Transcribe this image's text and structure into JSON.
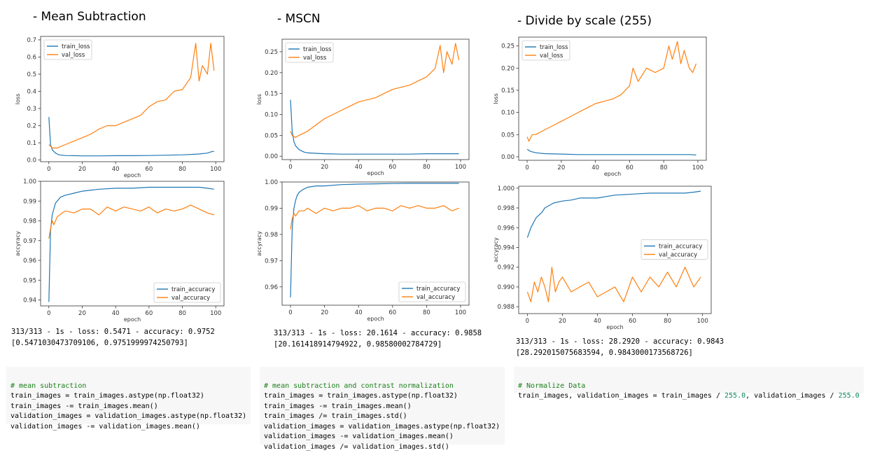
{
  "titles": [
    "- Mean Subtraction",
    "- MSCN",
    "- Divide by scale (255)"
  ],
  "colors": {
    "train": "#1f77b4",
    "val": "#ff7f0e"
  },
  "outputs": [
    {
      "line1": "313/313 - 1s - loss: 0.5471 - accuracy: 0.9752",
      "line2": "[0.5471030473709106, 0.9751999974250793]"
    },
    {
      "line1": "313/313 - 1s - loss: 20.1614 - accuracy: 0.9858",
      "line2": "[20.161418914794922, 0.98580002784729]"
    },
    {
      "line1": "313/313 - 1s - loss: 28.2920 - accuracy: 0.9843",
      "line2": "[28.292015075683594, 0.9843000173568726]"
    }
  ],
  "code": [
    {
      "comment": "# mean subtraction",
      "lines": [
        "train_images = train_images.astype(np.float32)",
        "train_images -= train_images.mean()",
        "validation_images = validation_images.astype(np.float32)",
        "validation_images -= validation_images.mean()"
      ]
    },
    {
      "comment": "# mean subtraction and contrast normalization",
      "lines": [
        "train_images = train_images.astype(np.float32)",
        "train_images -= train_images.mean()",
        "train_images /= train_images.std()",
        "validation_images = validation_images.astype(np.float32)",
        "validation_images -= validation_images.mean()",
        "validation_images /= validation_images.std()"
      ]
    },
    {
      "comment": "# Normalize Data",
      "line_prefix": "train_images, validation_images = train_images / ",
      "num1": "255.0",
      "line_mid": ", validation_images / ",
      "num2": "255.0"
    }
  ],
  "chart_data": [
    {
      "type": "line",
      "title": "",
      "xlabel": "epoch",
      "ylabel": "loss",
      "xlim": [
        0,
        100
      ],
      "ylim": [
        -0.01,
        0.72
      ],
      "xticks": [
        0,
        20,
        40,
        60,
        80,
        100
      ],
      "yticks": [
        0.0,
        0.1,
        0.2,
        0.3,
        0.4,
        0.5,
        0.6,
        0.7
      ],
      "ytick_labels": [
        "0.0",
        "0.1",
        "0.2",
        "0.3",
        "0.4",
        "0.5",
        "0.6",
        "0.7"
      ],
      "legend": "top-left",
      "series": [
        {
          "name": "train_loss",
          "x": [
            0,
            1,
            2,
            3,
            4,
            5,
            6,
            8,
            10,
            15,
            20,
            30,
            40,
            50,
            60,
            70,
            80,
            90,
            95,
            98,
            99
          ],
          "y": [
            0.25,
            0.09,
            0.06,
            0.05,
            0.04,
            0.035,
            0.03,
            0.028,
            0.026,
            0.025,
            0.024,
            0.024,
            0.025,
            0.025,
            0.026,
            0.028,
            0.03,
            0.035,
            0.04,
            0.05,
            0.05
          ]
        },
        {
          "name": "val_loss",
          "x": [
            0,
            2,
            5,
            10,
            15,
            20,
            25,
            30,
            35,
            40,
            45,
            50,
            55,
            60,
            65,
            70,
            75,
            80,
            85,
            88,
            90,
            92,
            95,
            97,
            99
          ],
          "y": [
            0.09,
            0.07,
            0.07,
            0.09,
            0.11,
            0.13,
            0.15,
            0.18,
            0.2,
            0.2,
            0.22,
            0.24,
            0.26,
            0.31,
            0.34,
            0.35,
            0.4,
            0.41,
            0.48,
            0.68,
            0.46,
            0.55,
            0.5,
            0.68,
            0.52
          ]
        }
      ]
    },
    {
      "type": "line",
      "title": "",
      "xlabel": "epoch",
      "ylabel": "accyracy",
      "xlim": [
        0,
        100
      ],
      "ylim": [
        0.937,
        1.0
      ],
      "xticks": [
        0,
        20,
        40,
        60,
        80,
        100
      ],
      "yticks": [
        0.94,
        0.95,
        0.96,
        0.97,
        0.98,
        0.99,
        1.0
      ],
      "ytick_labels": [
        "0.94",
        "0.95",
        "0.96",
        "0.97",
        "0.98",
        "0.99",
        "1.00"
      ],
      "legend": "bottom-right",
      "series": [
        {
          "name": "train_accuracy",
          "x": [
            0,
            1,
            2,
            3,
            4,
            5,
            7,
            10,
            15,
            20,
            30,
            40,
            50,
            60,
            70,
            80,
            90,
            95,
            99
          ],
          "y": [
            0.939,
            0.975,
            0.983,
            0.986,
            0.989,
            0.99,
            0.992,
            0.993,
            0.994,
            0.995,
            0.996,
            0.9965,
            0.9965,
            0.997,
            0.997,
            0.997,
            0.997,
            0.9965,
            0.996
          ]
        },
        {
          "name": "val_accuracy",
          "x": [
            0,
            1,
            2,
            3,
            5,
            8,
            10,
            15,
            20,
            25,
            30,
            35,
            40,
            45,
            50,
            55,
            60,
            65,
            70,
            75,
            80,
            85,
            90,
            95,
            99
          ],
          "y": [
            0.971,
            0.976,
            0.98,
            0.978,
            0.982,
            0.984,
            0.985,
            0.984,
            0.986,
            0.986,
            0.983,
            0.987,
            0.985,
            0.987,
            0.986,
            0.985,
            0.987,
            0.984,
            0.986,
            0.985,
            0.986,
            0.988,
            0.986,
            0.984,
            0.983
          ]
        }
      ]
    },
    {
      "type": "line",
      "title": "",
      "xlabel": "epoch",
      "ylabel": "loss",
      "xlim": [
        0,
        100
      ],
      "ylim": [
        -0.008,
        0.28
      ],
      "xticks": [
        0,
        20,
        40,
        60,
        80,
        100
      ],
      "yticks": [
        0.0,
        0.05,
        0.1,
        0.15,
        0.2,
        0.25
      ],
      "ytick_labels": [
        "0.00",
        "0.05",
        "0.10",
        "0.15",
        "0.20",
        "0.25"
      ],
      "legend": "top-left",
      "series": [
        {
          "name": "train_loss",
          "x": [
            0,
            1,
            2,
            3,
            5,
            8,
            10,
            20,
            30,
            40,
            50,
            60,
            70,
            80,
            90,
            95,
            99
          ],
          "y": [
            0.135,
            0.06,
            0.035,
            0.025,
            0.016,
            0.01,
            0.008,
            0.006,
            0.005,
            0.005,
            0.005,
            0.005,
            0.005,
            0.006,
            0.006,
            0.006,
            0.006
          ]
        },
        {
          "name": "val_loss",
          "x": [
            0,
            1,
            3,
            5,
            10,
            15,
            20,
            25,
            30,
            35,
            40,
            45,
            50,
            55,
            60,
            65,
            70,
            75,
            80,
            85,
            88,
            90,
            92,
            95,
            97,
            99
          ],
          "y": [
            0.06,
            0.05,
            0.045,
            0.05,
            0.06,
            0.075,
            0.09,
            0.1,
            0.11,
            0.12,
            0.13,
            0.135,
            0.14,
            0.15,
            0.16,
            0.165,
            0.17,
            0.18,
            0.19,
            0.21,
            0.265,
            0.2,
            0.25,
            0.22,
            0.27,
            0.23
          ]
        }
      ]
    },
    {
      "type": "line",
      "title": "",
      "xlabel": "epoch",
      "ylabel": "accyracy",
      "xlim": [
        0,
        100
      ],
      "ylim": [
        0.953,
        1.0
      ],
      "xticks": [
        0,
        20,
        40,
        60,
        80,
        100
      ],
      "yticks": [
        0.96,
        0.97,
        0.98,
        0.99,
        1.0
      ],
      "ytick_labels": [
        "0.96",
        "0.97",
        "0.98",
        "0.99",
        "1.00"
      ],
      "legend": "bottom-right",
      "series": [
        {
          "name": "train_accuracy",
          "x": [
            0,
            1,
            2,
            3,
            4,
            5,
            7,
            10,
            15,
            20,
            30,
            40,
            50,
            60,
            70,
            80,
            90,
            95,
            99
          ],
          "y": [
            0.956,
            0.982,
            0.99,
            0.993,
            0.995,
            0.996,
            0.997,
            0.998,
            0.9985,
            0.9985,
            0.999,
            0.9992,
            0.9993,
            0.9994,
            0.9995,
            0.9995,
            0.9995,
            0.9995,
            0.9995
          ]
        },
        {
          "name": "val_accuracy",
          "x": [
            0,
            1,
            2,
            3,
            5,
            8,
            10,
            15,
            20,
            25,
            30,
            35,
            40,
            45,
            50,
            55,
            60,
            65,
            70,
            75,
            80,
            85,
            90,
            95,
            99
          ],
          "y": [
            0.982,
            0.986,
            0.988,
            0.987,
            0.989,
            0.989,
            0.99,
            0.988,
            0.99,
            0.989,
            0.99,
            0.99,
            0.991,
            0.989,
            0.99,
            0.99,
            0.989,
            0.991,
            0.99,
            0.991,
            0.99,
            0.99,
            0.991,
            0.989,
            0.99
          ]
        }
      ]
    },
    {
      "type": "line",
      "title": "",
      "xlabel": "epoch",
      "ylabel": "loss",
      "xlim": [
        0,
        100
      ],
      "ylim": [
        -0.008,
        0.27
      ],
      "xticks": [
        0,
        20,
        40,
        60,
        80,
        100
      ],
      "yticks": [
        0.0,
        0.05,
        0.1,
        0.15,
        0.2,
        0.25
      ],
      "ytick_labels": [
        "0.00",
        "0.05",
        "0.10",
        "0.15",
        "0.20",
        "0.25"
      ],
      "legend": "top-left",
      "series": [
        {
          "name": "train_loss",
          "x": [
            0,
            2,
            5,
            10,
            20,
            30,
            40,
            50,
            60,
            70,
            80,
            90,
            95,
            99
          ],
          "y": [
            0.017,
            0.012,
            0.009,
            0.007,
            0.006,
            0.005,
            0.005,
            0.005,
            0.005,
            0.005,
            0.005,
            0.005,
            0.005,
            0.004
          ]
        },
        {
          "name": "val_loss",
          "x": [
            0,
            1,
            3,
            5,
            10,
            15,
            20,
            25,
            30,
            35,
            40,
            45,
            50,
            55,
            60,
            62,
            65,
            70,
            75,
            80,
            83,
            85,
            88,
            90,
            92,
            95,
            97,
            99
          ],
          "y": [
            0.045,
            0.035,
            0.05,
            0.05,
            0.06,
            0.07,
            0.08,
            0.09,
            0.1,
            0.11,
            0.12,
            0.125,
            0.13,
            0.14,
            0.16,
            0.2,
            0.17,
            0.2,
            0.19,
            0.2,
            0.25,
            0.22,
            0.26,
            0.21,
            0.24,
            0.2,
            0.19,
            0.21
          ]
        }
      ]
    },
    {
      "type": "line",
      "title": "",
      "xlabel": "epoch",
      "ylabel": "accyracy",
      "xlim": [
        0,
        100
      ],
      "ylim": [
        0.9873,
        1.0002
      ],
      "xticks": [
        0,
        20,
        40,
        60,
        80,
        100
      ],
      "yticks": [
        0.988,
        0.99,
        0.992,
        0.994,
        0.996,
        0.998,
        1.0
      ],
      "ytick_labels": [
        "0.988",
        "0.990",
        "0.992",
        "0.994",
        "0.996",
        "0.998",
        "1.000"
      ],
      "legend": "center-right",
      "series": [
        {
          "name": "train_accuracy",
          "x": [
            0,
            2,
            5,
            8,
            10,
            15,
            20,
            25,
            30,
            40,
            50,
            60,
            70,
            80,
            90,
            95,
            99
          ],
          "y": [
            0.995,
            0.996,
            0.997,
            0.9975,
            0.998,
            0.9985,
            0.9987,
            0.9988,
            0.999,
            0.999,
            0.9993,
            0.9994,
            0.9995,
            0.9995,
            0.9995,
            0.9996,
            0.9997
          ]
        },
        {
          "name": "val_accuracy",
          "x": [
            0,
            2,
            4,
            6,
            8,
            10,
            12,
            14,
            16,
            18,
            20,
            25,
            30,
            35,
            40,
            45,
            50,
            55,
            60,
            65,
            70,
            75,
            80,
            85,
            90,
            95,
            99
          ],
          "y": [
            0.9895,
            0.9885,
            0.9905,
            0.9895,
            0.991,
            0.99,
            0.9885,
            0.992,
            0.9895,
            0.9905,
            0.991,
            0.9895,
            0.99,
            0.9905,
            0.989,
            0.9895,
            0.99,
            0.9885,
            0.991,
            0.9895,
            0.991,
            0.99,
            0.9915,
            0.99,
            0.992,
            0.99,
            0.991
          ]
        }
      ]
    }
  ]
}
